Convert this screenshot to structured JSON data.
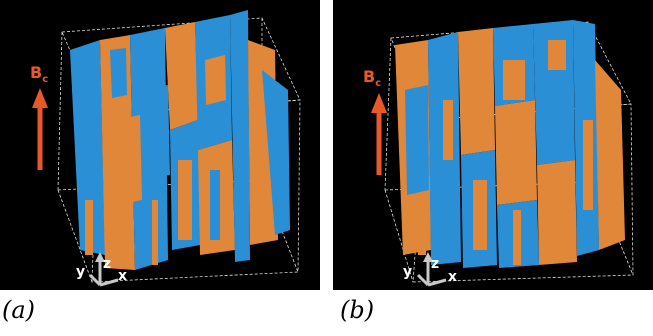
{
  "panels": [
    {
      "id": "a",
      "caption": "(a)",
      "field_label": "B",
      "field_subscript": "c",
      "axis_labels": {
        "y": "y",
        "z": "z",
        "x": "x"
      }
    },
    {
      "id": "b",
      "caption": "(b)",
      "field_label": "B",
      "field_subscript": "c",
      "axis_labels": {
        "y": "y",
        "z": "z",
        "x": "x"
      }
    }
  ],
  "colors": {
    "background": "#000000",
    "phase_blue": "#2b8fd6",
    "phase_orange": "#e0873a",
    "field_arrow": "#e8592a",
    "axis_gray": "#c8c8c8",
    "wireframe": "#dddddd"
  }
}
